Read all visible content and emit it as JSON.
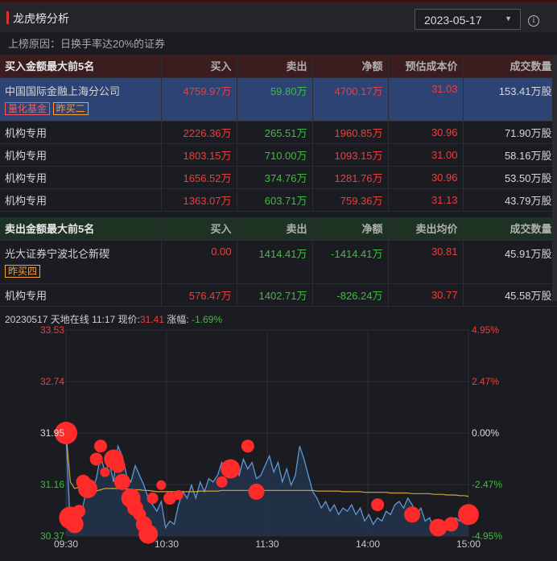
{
  "header": {
    "title": "龙虎榜分析",
    "date": "2023-05-17"
  },
  "reason": "上榜原因：日换手率达20%的证券",
  "buy": {
    "title": "买入金额最大前5名",
    "columns": [
      "买入",
      "卖出",
      "净额",
      "预估成本价",
      "成交数量"
    ],
    "rows": [
      {
        "name": "中国国际金融上海分公司",
        "buy": "4759.97万",
        "sell": "59.80万",
        "net": "4700.17万",
        "price": "31.03",
        "vol": "153.41万股",
        "tags": [
          "量化基金",
          "昨买二"
        ]
      },
      {
        "name": "机构专用",
        "buy": "2226.36万",
        "sell": "265.51万",
        "net": "1960.85万",
        "price": "30.96",
        "vol": "71.90万股"
      },
      {
        "name": "机构专用",
        "buy": "1803.15万",
        "sell": "710.00万",
        "net": "1093.15万",
        "price": "31.00",
        "vol": "58.16万股"
      },
      {
        "name": "机构专用",
        "buy": "1656.52万",
        "sell": "374.76万",
        "net": "1281.76万",
        "price": "30.96",
        "vol": "53.50万股"
      },
      {
        "name": "机构专用",
        "buy": "1363.07万",
        "sell": "603.71万",
        "net": "759.36万",
        "price": "31.13",
        "vol": "43.79万股"
      }
    ]
  },
  "sell": {
    "title": "卖出金额最大前5名",
    "columns": [
      "买入",
      "卖出",
      "净额",
      "卖出均价",
      "成交数量"
    ],
    "rows": [
      {
        "name": "光大证券宁波北仑新碶",
        "buy": "0.00",
        "sell": "1414.41万",
        "net": "-1414.41万",
        "price": "30.81",
        "vol": "45.91万股",
        "tags": [
          "昨买四"
        ]
      },
      {
        "name": "机构专用",
        "buy": "576.47万",
        "sell": "1402.71万",
        "net": "-826.24万",
        "price": "30.77",
        "vol": "45.58万股"
      }
    ]
  },
  "quote": {
    "date": "20230517",
    "stock": "天地在线",
    "time": "11:17",
    "price_label": "现价:",
    "price": "31.41",
    "change_label": "涨幅:",
    "change": "-1.69%"
  },
  "chart_data": {
    "type": "line",
    "y_labels_left": [
      "33.53",
      "32.74",
      "31.95",
      "31.16",
      "30.37"
    ],
    "y_labels_right": [
      "4.95%",
      "2.47%",
      "0.00%",
      "-2.47%",
      "-4.95%"
    ],
    "x_labels": [
      "09:30",
      "10:30",
      "11:30",
      "14:00",
      "15:00"
    ],
    "ylim": [
      30.37,
      33.53
    ],
    "prev_close": 31.95,
    "series": [
      {
        "values": [
          31.95,
          30.5,
          30.65,
          30.6,
          30.85,
          31.2,
          31.05,
          31.25,
          31.6,
          31.35,
          31.5,
          31.2,
          31.75,
          31.6,
          31.3,
          31.2,
          31.45,
          31.3,
          31.15,
          30.95,
          30.85,
          30.75,
          30.9,
          30.5,
          30.6,
          30.55,
          30.85,
          31.05,
          30.95,
          31.15,
          30.95,
          31.2,
          31.05,
          31.25,
          31.2,
          31.3,
          31.5,
          31.35,
          31.45,
          31.5,
          31.3,
          31.55,
          31.4,
          31.5,
          31.25,
          31.3,
          31.45,
          31.6,
          31.35,
          31.5,
          31.2,
          31.4,
          31.15,
          31.3,
          31.75,
          31.55,
          31.3,
          31.05,
          30.95,
          30.8,
          30.9,
          30.75,
          30.85,
          30.7,
          30.8,
          30.75,
          30.85,
          30.7,
          30.8,
          30.6,
          30.7,
          30.55,
          30.65,
          30.6,
          30.75,
          30.7,
          30.85,
          30.9,
          30.8,
          30.95,
          30.85,
          30.7,
          30.8,
          30.6,
          30.65,
          30.5,
          30.55,
          30.45,
          30.6,
          30.55,
          30.65,
          30.6,
          30.7,
          30.75
        ]
      },
      {
        "values": [
          31.95,
          31.2,
          31.1,
          31.12,
          31.15,
          31.1,
          31.05,
          31.06,
          31.08,
          31.1,
          31.1,
          31.1,
          31.1,
          31.1,
          31.09,
          31.09,
          31.08,
          31.08,
          31.07,
          31.07,
          31.06,
          31.05,
          31.05,
          31.05,
          31.05,
          31.05,
          31.05,
          31.05,
          31.05,
          31.05,
          31.05,
          31.06,
          31.06,
          31.06,
          31.06,
          31.06,
          31.07,
          31.07,
          31.07,
          31.07,
          31.07,
          31.07,
          31.07,
          31.07,
          31.07,
          31.07,
          31.07,
          31.07,
          31.07,
          31.07,
          31.07,
          31.07,
          31.07,
          31.07,
          31.07,
          31.07,
          31.07,
          31.07,
          31.06,
          31.06,
          31.06,
          31.06,
          31.06,
          31.06,
          31.05,
          31.05,
          31.05,
          31.05,
          31.05,
          31.04,
          31.04,
          31.04,
          31.04,
          31.04,
          31.04,
          31.03,
          31.03,
          31.03,
          31.03,
          31.03,
          31.02,
          31.02,
          31.02,
          31.02,
          31.02,
          31.01,
          31.01,
          31.01,
          31.0,
          31.0,
          31.0,
          30.99,
          30.99,
          30.98
        ]
      }
    ],
    "markers": [
      {
        "i": 0,
        "v": 31.95,
        "s": 14
      },
      {
        "i": 1,
        "v": 30.65,
        "s": 14
      },
      {
        "i": 2,
        "v": 30.55,
        "s": 11
      },
      {
        "i": 3,
        "v": 30.75,
        "s": 8
      },
      {
        "i": 4,
        "v": 31.2,
        "s": 9
      },
      {
        "i": 5,
        "v": 31.1,
        "s": 12
      },
      {
        "i": 7,
        "v": 31.55,
        "s": 8
      },
      {
        "i": 8,
        "v": 31.75,
        "s": 8
      },
      {
        "i": 9,
        "v": 31.35,
        "s": 6
      },
      {
        "i": 11,
        "v": 31.55,
        "s": 12
      },
      {
        "i": 12,
        "v": 31.45,
        "s": 9
      },
      {
        "i": 13,
        "v": 31.2,
        "s": 10
      },
      {
        "i": 15,
        "v": 30.95,
        "s": 12
      },
      {
        "i": 16,
        "v": 30.8,
        "s": 10
      },
      {
        "i": 17,
        "v": 30.7,
        "s": 8
      },
      {
        "i": 18,
        "v": 30.55,
        "s": 10
      },
      {
        "i": 19,
        "v": 30.4,
        "s": 12
      },
      {
        "i": 20,
        "v": 30.95,
        "s": 7
      },
      {
        "i": 22,
        "v": 31.15,
        "s": 6
      },
      {
        "i": 24,
        "v": 30.95,
        "s": 8
      },
      {
        "i": 26,
        "v": 31.0,
        "s": 6
      },
      {
        "i": 36,
        "v": 31.2,
        "s": 7
      },
      {
        "i": 38,
        "v": 31.4,
        "s": 12
      },
      {
        "i": 42,
        "v": 31.75,
        "s": 8
      },
      {
        "i": 44,
        "v": 31.05,
        "s": 10
      },
      {
        "i": 72,
        "v": 30.85,
        "s": 8
      },
      {
        "i": 80,
        "v": 30.7,
        "s": 10
      },
      {
        "i": 86,
        "v": 30.5,
        "s": 11
      },
      {
        "i": 89,
        "v": 30.55,
        "s": 9
      },
      {
        "i": 93,
        "v": 30.7,
        "s": 13
      }
    ]
  }
}
